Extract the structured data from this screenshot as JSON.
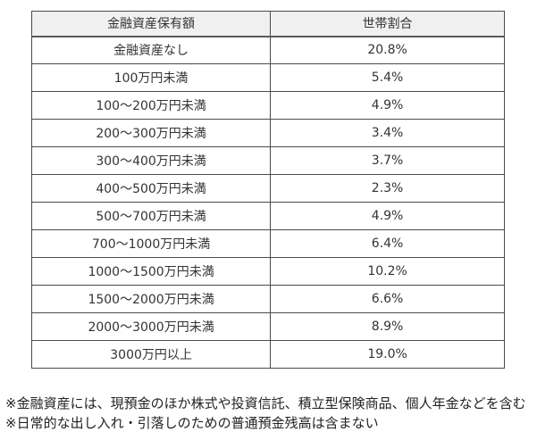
{
  "chart_data": {
    "type": "table",
    "title": "",
    "columns": [
      "金融資産保有額",
      "世帯割合"
    ],
    "rows": [
      [
        "金融資産なし",
        "20.8%"
      ],
      [
        "100万円未満",
        "5.4%"
      ],
      [
        "100〜200万円未満",
        "4.9%"
      ],
      [
        "200〜300万円未満",
        "3.4%"
      ],
      [
        "300〜400万円未満",
        "3.7%"
      ],
      [
        "400〜500万円未満",
        "2.3%"
      ],
      [
        "500〜700万円未満",
        "4.9%"
      ],
      [
        "700〜1000万円未満",
        "6.4%"
      ],
      [
        "1000〜1500万円未満",
        "10.2%"
      ],
      [
        "1500〜2000万円未満",
        "6.6%"
      ],
      [
        "2000〜3000万円未満",
        "8.9%"
      ],
      [
        "3000万円以上",
        "19.0%"
      ]
    ]
  },
  "footnotes": [
    "※金融資産には、現預金のほか株式や投資信託、積立型保険商品、個人年金などを含む",
    "※日常的な出し入れ・引落しのための普通預金残高は含まない"
  ],
  "colors": {
    "header_bg": "#f0f0f0",
    "border": "#4a4a4a",
    "text": "#333333",
    "page_bg": "#ffffff"
  }
}
